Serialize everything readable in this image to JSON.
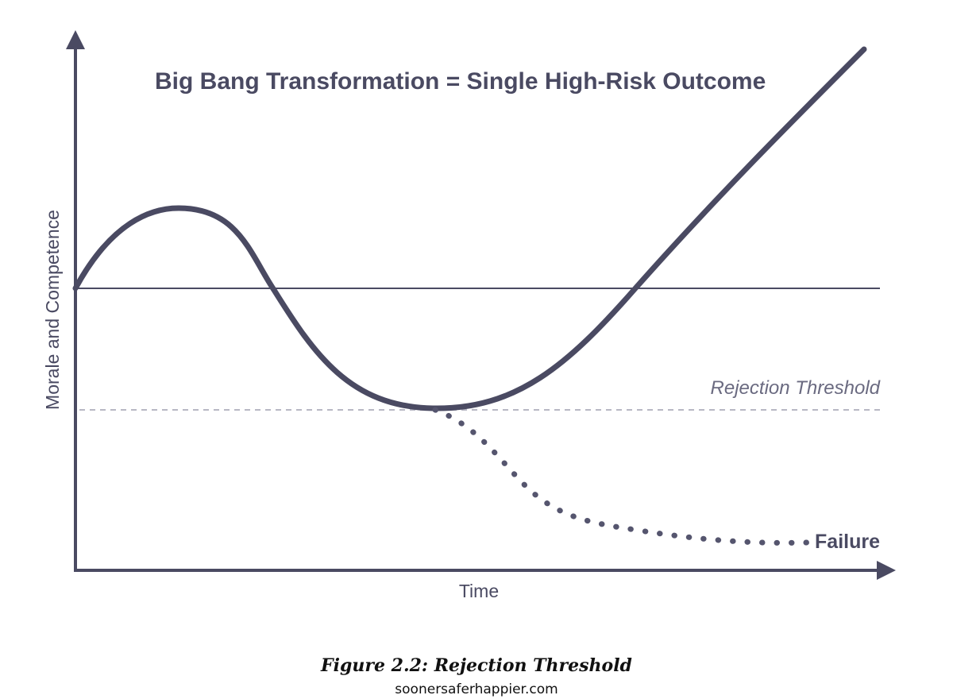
{
  "diagram": {
    "title": "Big Bang Transformation = Single High-Risk Outcome",
    "y_axis_label": "Morale and Competence",
    "x_axis_label": "Time",
    "threshold_label": "Rejection Threshold",
    "failure_label": "Failure",
    "colors": {
      "curve": "#4a4a62",
      "axis": "#4a4a62",
      "baseline": "#4a4a62",
      "threshold": "#b8b8c4",
      "failure_path": "#55556e"
    }
  },
  "caption": {
    "figure": "Figure 2.2: Rejection Threshold",
    "source": "soonersaferhappier.com"
  }
}
